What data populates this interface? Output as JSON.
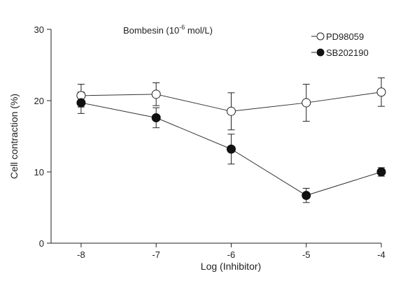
{
  "chart_data": {
    "type": "line",
    "title": "Bombesin (10",
    "title_sup": "-6",
    "title_tail": " mol/L)",
    "xlabel": "Log (Inhibitor)",
    "ylabel": "Cell contraction (%)",
    "x": [
      -8,
      -7,
      -6,
      -5,
      -4
    ],
    "x_ticks": [
      "-8",
      "-7",
      "-6",
      "-5",
      "-4"
    ],
    "y_ticks": [
      "0",
      "10",
      "20",
      "30"
    ],
    "xlim": [
      -8.4,
      -4
    ],
    "ylim": [
      0,
      30
    ],
    "grid": false,
    "legend_position": "top-right",
    "series": [
      {
        "name": "PD98059",
        "marker": "open-circle",
        "values": [
          20.7,
          20.9,
          18.5,
          19.7,
          21.2
        ],
        "error": [
          1.6,
          1.6,
          2.6,
          2.6,
          2.0
        ]
      },
      {
        "name": "SB202190",
        "marker": "filled-circle",
        "values": [
          19.7,
          17.6,
          13.2,
          6.7,
          10.0
        ],
        "error": [
          1.5,
          1.4,
          2.1,
          1.0,
          0.6
        ]
      }
    ]
  }
}
